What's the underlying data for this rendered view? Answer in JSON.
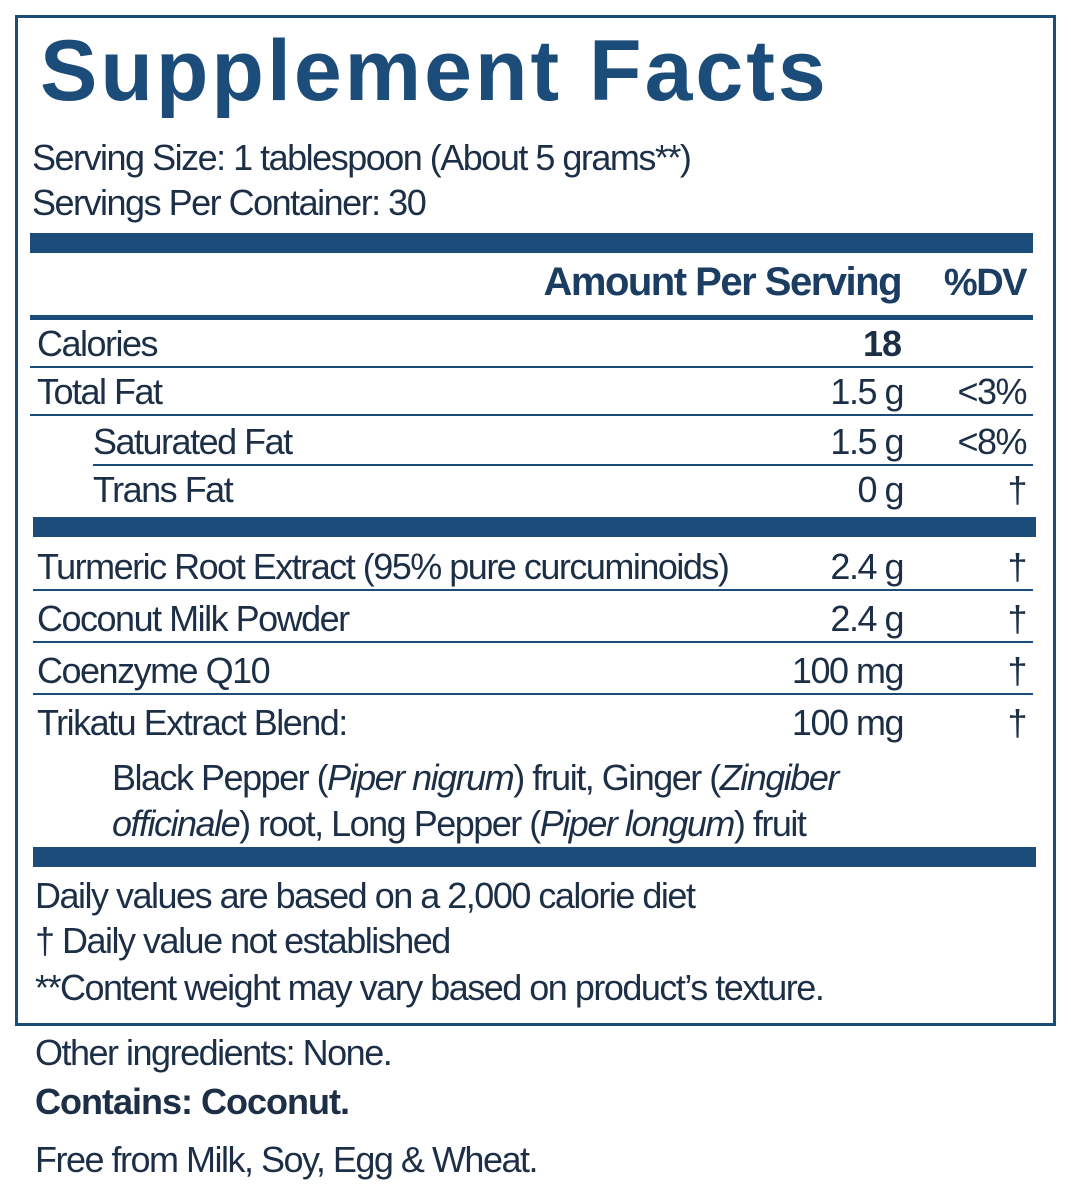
{
  "header": {
    "title": "Supplement Facts",
    "serving_size": "Serving Size: 1 tablespoon (About 5 grams**)",
    "servings_per_container": "Servings Per Container: 30"
  },
  "table": {
    "columns": [
      "Amount Per Serving",
      "%DV"
    ],
    "rows": [
      {
        "name": "Calories",
        "amount": "18"
      },
      {
        "name": "Total Fat",
        "amount": "1.5 g",
        "dv": "<3%"
      },
      {
        "name": "Saturated Fat",
        "amount": "1.5 g",
        "dv": "<8%"
      },
      {
        "name": "Trans Fat",
        "amount": "0 g",
        "dv": "†"
      }
    ]
  },
  "ingredients": [
    {
      "name": "Turmeric Root Extract (95% pure curcuminoids)",
      "amount": "2.4 g",
      "dv": "†"
    },
    {
      "name": "Coconut Milk Powder",
      "amount": "2.4 g",
      "dv": "†"
    },
    {
      "name": "Coenzyme Q10",
      "amount": "100 mg",
      "dv": "†"
    },
    {
      "name": "Trikatu Extract Blend:",
      "amount": "100 mg",
      "dv": "†"
    }
  ],
  "blend_description": [
    {
      "text": "Black Pepper (",
      "italic": false
    },
    {
      "text": "Piper nigrum",
      "italic": true
    },
    {
      "text": ") fruit, Ginger (",
      "italic": false
    },
    {
      "text": "Zingiber officinale",
      "italic": true
    },
    {
      "text": ") root, Long Pepper (",
      "italic": false
    },
    {
      "text": "Piper longum",
      "italic": true
    },
    {
      "text": ") fruit",
      "italic": false
    }
  ],
  "footnotes": [
    "Daily values are based on a 2,000 calorie diet",
    "† Daily value not established",
    "**Content weight may vary based on product’s texture."
  ],
  "other_ingredients": "Other ingredients: None.",
  "contains": "Contains: Coconut.",
  "free_from": "Free from Milk, Soy, Egg & Wheat."
}
